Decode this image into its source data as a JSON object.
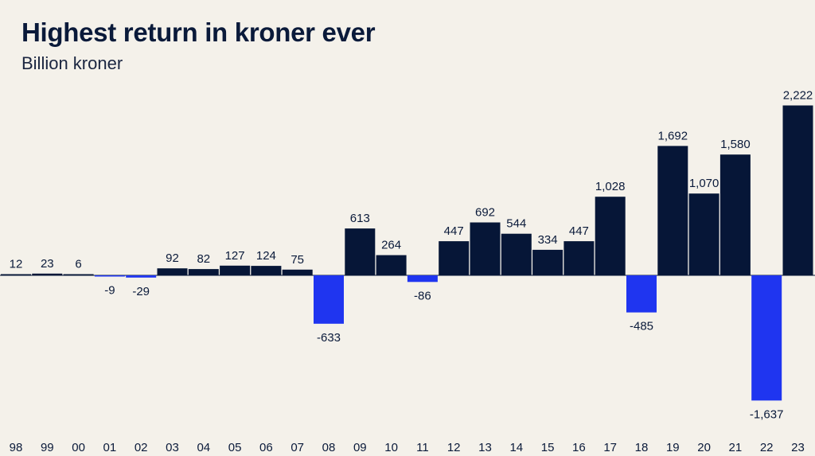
{
  "title": "Highest return in kroner ever",
  "subtitle": "Billion kroner",
  "chart_data": {
    "type": "bar",
    "title": "Highest return in kroner ever",
    "subtitle": "Billion kroner",
    "xlabel": "",
    "ylabel": "",
    "categories": [
      "98",
      "99",
      "00",
      "01",
      "02",
      "03",
      "04",
      "05",
      "06",
      "07",
      "08",
      "09",
      "10",
      "11",
      "12",
      "13",
      "14",
      "15",
      "16",
      "17",
      "18",
      "19",
      "20",
      "21",
      "22",
      "23"
    ],
    "values": [
      12,
      23,
      6,
      -9,
      -29,
      92,
      82,
      127,
      124,
      75,
      -633,
      613,
      264,
      -86,
      447,
      692,
      544,
      334,
      447,
      1028,
      -485,
      1692,
      1070,
      1580,
      -1637,
      2222
    ],
    "value_labels": [
      "12",
      "23",
      "6",
      "-9",
      "-29",
      "92",
      "82",
      "127",
      "124",
      "75",
      "-633",
      "613",
      "264",
      "-86",
      "447",
      "692",
      "544",
      "334",
      "447",
      "1,028",
      "-485",
      "1,692",
      "1,070",
      "1,580",
      "-1,637",
      "2,222"
    ],
    "ylim": [
      -1750,
      2400
    ],
    "grid": false,
    "legend": "none",
    "colors": {
      "positive": "#061637",
      "negative": "#1f35f0",
      "background": "#f4f1ea",
      "text": "#0a1a3a"
    }
  }
}
